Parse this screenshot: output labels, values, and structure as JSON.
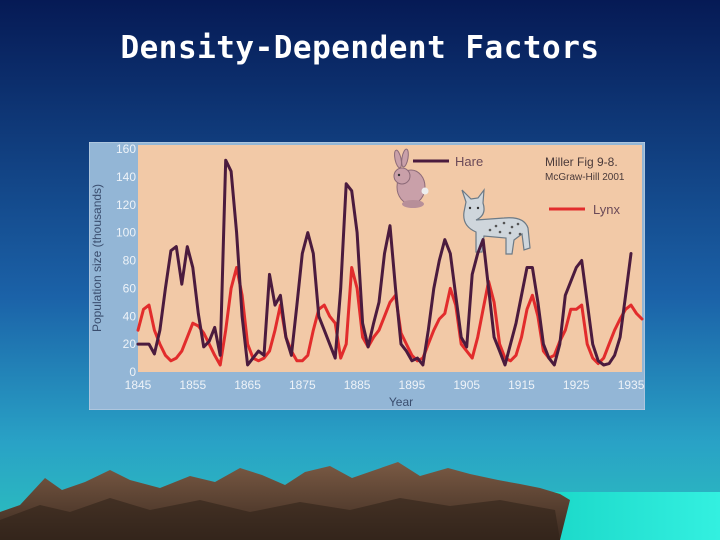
{
  "slide": {
    "title": "Density-Dependent Factors"
  },
  "colors": {
    "background_top": "#061a55",
    "background_mid": "#1b62a8",
    "background_bottom": "#29b3be",
    "figure_panel": "#f2c9a7",
    "axis_strip": "#93b6d6",
    "hare": "#4b1b3e",
    "lynx": "#e22c2c"
  },
  "chart_data": {
    "type": "line",
    "title": "",
    "xlabel": "Year",
    "ylabel": "Population size (thousands)",
    "xlim": [
      1845,
      1937
    ],
    "ylim": [
      0,
      160
    ],
    "x_ticks": [
      1845,
      1855,
      1865,
      1875,
      1885,
      1895,
      1905,
      1915,
      1925,
      1935
    ],
    "y_ticks": [
      0,
      20,
      40,
      60,
      80,
      100,
      120,
      140,
      160
    ],
    "legend_position": "top-right",
    "annotation": {
      "line1": "Miller Fig 9-8.",
      "line2": "McGraw-Hill 2001"
    },
    "series": [
      {
        "name": "Hare",
        "color": "#4b1b3e",
        "x": [
          1845,
          1847,
          1848,
          1849,
          1850,
          1851,
          1852,
          1853,
          1854,
          1855,
          1856,
          1857,
          1858,
          1859,
          1860,
          1861,
          1862,
          1863,
          1864,
          1865,
          1866,
          1867,
          1868,
          1869,
          1870,
          1871,
          1872,
          1873,
          1874,
          1875,
          1876,
          1877,
          1878,
          1879,
          1880,
          1881,
          1882,
          1883,
          1884,
          1885,
          1886,
          1887,
          1888,
          1889,
          1890,
          1891,
          1892,
          1893,
          1894,
          1895,
          1896,
          1897,
          1898,
          1899,
          1900,
          1901,
          1902,
          1903,
          1904,
          1905,
          1906,
          1907,
          1908,
          1909,
          1910,
          1911,
          1912,
          1913,
          1914,
          1915,
          1916,
          1917,
          1918,
          1919,
          1920,
          1921,
          1922,
          1923,
          1924,
          1925,
          1926,
          1927,
          1928,
          1929,
          1930,
          1931,
          1932,
          1933,
          1934,
          1935
        ],
        "values": [
          20,
          20,
          13,
          30,
          60,
          87,
          90,
          63,
          90,
          75,
          42,
          18,
          22,
          32,
          12,
          152,
          144,
          100,
          40,
          5,
          10,
          15,
          12,
          70,
          48,
          55,
          25,
          12,
          48,
          85,
          100,
          85,
          40,
          30,
          20,
          10,
          60,
          135,
          130,
          100,
          35,
          18,
          35,
          50,
          85,
          105,
          60,
          20,
          15,
          8,
          10,
          5,
          30,
          60,
          80,
          95,
          85,
          55,
          25,
          18,
          70,
          85,
          95,
          60,
          25,
          15,
          5,
          20,
          35,
          55,
          75,
          75,
          50,
          20,
          10,
          5,
          20,
          55,
          65,
          75,
          80,
          50,
          20,
          8,
          5,
          6,
          12,
          25,
          55,
          85
        ]
      },
      {
        "name": "Lynx",
        "color": "#e22c2c",
        "x": [
          1845,
          1846,
          1847,
          1848,
          1849,
          1850,
          1851,
          1852,
          1853,
          1854,
          1855,
          1856,
          1857,
          1858,
          1859,
          1860,
          1861,
          1862,
          1863,
          1864,
          1865,
          1866,
          1867,
          1868,
          1869,
          1870,
          1871,
          1872,
          1873,
          1874,
          1875,
          1876,
          1877,
          1878,
          1879,
          1880,
          1881,
          1882,
          1883,
          1884,
          1885,
          1886,
          1887,
          1888,
          1889,
          1890,
          1891,
          1892,
          1893,
          1894,
          1895,
          1896,
          1897,
          1898,
          1899,
          1900,
          1901,
          1902,
          1903,
          1904,
          1905,
          1906,
          1907,
          1908,
          1909,
          1910,
          1911,
          1912,
          1913,
          1914,
          1915,
          1916,
          1917,
          1918,
          1919,
          1920,
          1921,
          1922,
          1923,
          1924,
          1925,
          1926,
          1927,
          1928,
          1929,
          1930,
          1931,
          1932,
          1933,
          1934,
          1935,
          1936,
          1937
        ],
        "values": [
          30,
          45,
          48,
          30,
          20,
          12,
          8,
          10,
          15,
          25,
          35,
          33,
          28,
          20,
          12,
          5,
          30,
          60,
          75,
          55,
          20,
          10,
          8,
          10,
          15,
          30,
          48,
          25,
          15,
          8,
          8,
          12,
          30,
          45,
          48,
          40,
          35,
          10,
          20,
          75,
          60,
          25,
          18,
          25,
          30,
          40,
          50,
          55,
          28,
          20,
          12,
          8,
          10,
          20,
          30,
          38,
          42,
          60,
          48,
          20,
          15,
          10,
          25,
          45,
          65,
          50,
          20,
          10,
          8,
          12,
          25,
          45,
          55,
          40,
          15,
          10,
          12,
          22,
          30,
          45,
          45,
          48,
          20,
          10,
          6,
          10,
          20,
          30,
          38,
          45,
          48,
          42,
          38
        ]
      }
    ]
  }
}
